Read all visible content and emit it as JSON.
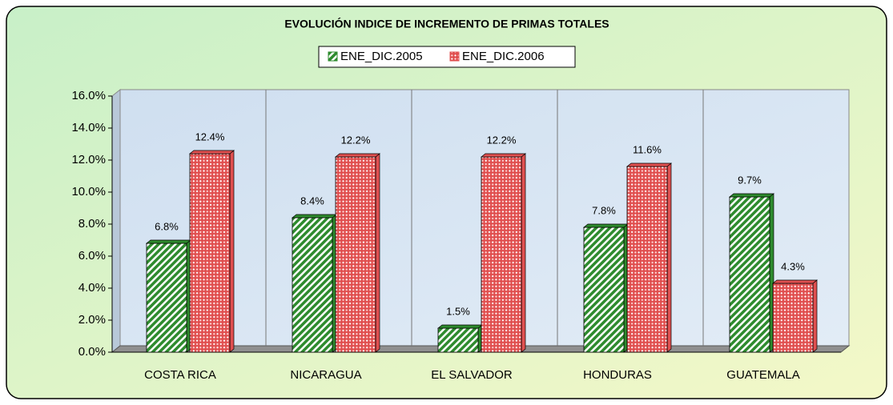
{
  "chart_data": {
    "type": "bar",
    "title": "EVOLUCIÓN INDICE DE INCREMENTO DE PRIMAS TOTALES",
    "categories": [
      "COSTA RICA",
      "NICARAGUA",
      "EL SALVADOR",
      "HONDURAS",
      "GUATEMALA"
    ],
    "series": [
      {
        "name": "ENE_DIC.2005",
        "color": "#2e8b2e",
        "values": [
          6.8,
          8.4,
          1.5,
          7.8,
          9.7
        ],
        "value_labels": [
          "6.8%",
          "8.4%",
          "1.5%",
          "7.8%",
          "9.7%"
        ]
      },
      {
        "name": "ENE_DIC.2006",
        "color": "#e05050",
        "values": [
          12.4,
          12.2,
          12.2,
          11.6,
          4.3
        ],
        "value_labels": [
          "12.4%",
          "12.2%",
          "12.2%",
          "11.6%",
          "4.3%"
        ]
      }
    ],
    "ylim": [
      0,
      16
    ],
    "yticks": [
      {
        "value": 0,
        "label": "0.0%"
      },
      {
        "value": 2,
        "label": "2.0%"
      },
      {
        "value": 4,
        "label": "4.0%"
      },
      {
        "value": 6,
        "label": "6.0%"
      },
      {
        "value": 8,
        "label": "8.0%"
      },
      {
        "value": 10,
        "label": "10.0%"
      },
      {
        "value": 12,
        "label": "12.0%"
      },
      {
        "value": 14,
        "label": "14.0%"
      },
      {
        "value": 16,
        "label": "16.0%"
      }
    ]
  }
}
